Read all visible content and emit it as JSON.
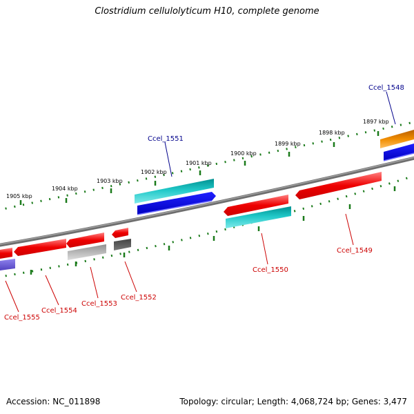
{
  "title": "Clostridium cellulolyticum H10, complete genome",
  "accession": "Accession: NC_011898",
  "topology": "Topology: circular; Length: 4,068,724 bp; Genes: 3,477",
  "scale_ticks": [
    "1897 kbp",
    "1898 kbp",
    "1899 kbp",
    "1900 kbp",
    "1901 kbp",
    "1902 kbp",
    "1903 kbp",
    "1904 kbp",
    "1905 kbp"
  ],
  "genes": [
    {
      "label": "Ccel_1548",
      "color": "#00008b"
    },
    {
      "label": "Ccel_1549",
      "color": "#cc0000"
    },
    {
      "label": "Ccel_1550",
      "color": "#cc0000"
    },
    {
      "label": "Ccel_1551",
      "color": "#00008b"
    },
    {
      "label": "Ccel_1552",
      "color": "#cc0000"
    },
    {
      "label": "Ccel_1553",
      "color": "#cc0000"
    },
    {
      "label": "Ccel_1554",
      "color": "#cc0000"
    },
    {
      "label": "Ccel_1555",
      "color": "#cc0000"
    }
  ],
  "colors": {
    "backbone": "#7a7a7a",
    "tick": "#1a7a1a",
    "red_feature": "#ee0000",
    "cyan_feature": "#20c8c8",
    "blue_feature": "#0000e6",
    "orange_feature": "#f08c00",
    "grey_feature": "#b8b8b8",
    "dark_grey_feature": "#666666",
    "purple_feature": "#6a5acd"
  }
}
